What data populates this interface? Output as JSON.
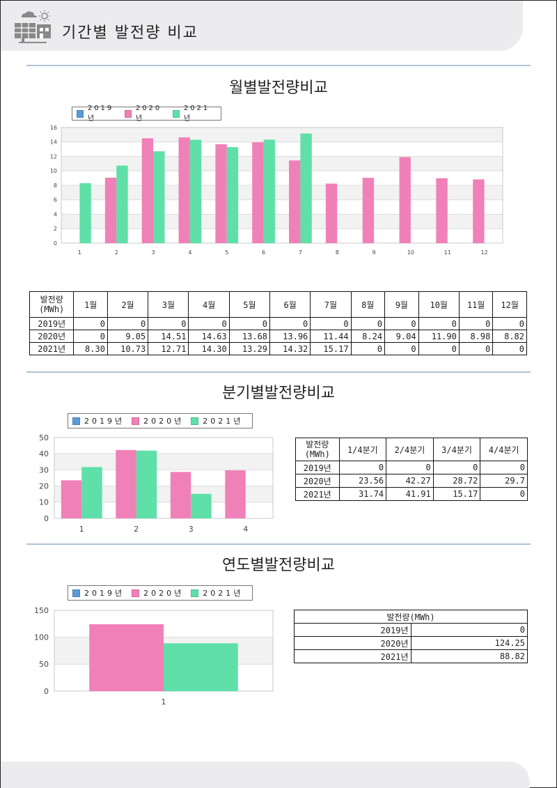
{
  "header": {
    "title": "기간별 발전량 비교"
  },
  "colors": {
    "s2019": "#5b9bd5",
    "s2020": "#f080b8",
    "s2021": "#5ee0a8",
    "header_bg": "#ececee",
    "rule": "#aec3da"
  },
  "sections": {
    "monthly": {
      "title": "월별발전량비교"
    },
    "quarterly": {
      "title": "분기별발전량비교"
    },
    "yearly": {
      "title": "연도별발전량비교"
    }
  },
  "legend": {
    "s2019": "2019년",
    "s2020": "2020년",
    "s2021": "2021년"
  },
  "chart_data": [
    {
      "type": "bar",
      "categories": [
        "1",
        "2",
        "3",
        "4",
        "5",
        "6",
        "7",
        "8",
        "9",
        "10",
        "11",
        "12"
      ],
      "ylim": [
        0,
        16
      ],
      "yticks": [
        0,
        2,
        4,
        6,
        8,
        10,
        12,
        14,
        16
      ],
      "grid": true,
      "legend_position": "top-left",
      "series": [
        {
          "name": "2019년",
          "values": [
            0,
            0,
            0,
            0,
            0,
            0,
            0,
            0,
            0,
            0,
            0,
            0
          ]
        },
        {
          "name": "2020년",
          "values": [
            0,
            9.05,
            14.51,
            14.63,
            13.68,
            13.96,
            11.44,
            8.24,
            9.04,
            11.9,
            8.98,
            8.82
          ]
        },
        {
          "name": "2021년",
          "values": [
            8.3,
            10.73,
            12.71,
            14.3,
            13.29,
            14.32,
            15.17,
            0,
            0,
            0,
            0,
            0
          ]
        }
      ]
    },
    {
      "type": "bar",
      "categories": [
        "1",
        "2",
        "3",
        "4"
      ],
      "ylim": [
        0,
        50
      ],
      "yticks": [
        0,
        10,
        20,
        30,
        40,
        50
      ],
      "grid": true,
      "legend_position": "top-left",
      "series": [
        {
          "name": "2019년",
          "values": [
            0,
            0,
            0,
            0
          ]
        },
        {
          "name": "2020년",
          "values": [
            23.56,
            42.27,
            28.72,
            29.7
          ]
        },
        {
          "name": "2021년",
          "values": [
            31.74,
            41.91,
            15.17,
            0
          ]
        }
      ]
    },
    {
      "type": "bar",
      "categories": [
        "1"
      ],
      "ylim": [
        0,
        150
      ],
      "yticks": [
        0,
        50,
        100,
        150
      ],
      "grid": true,
      "legend_position": "top-left",
      "series": [
        {
          "name": "2019년",
          "values": [
            0
          ]
        },
        {
          "name": "2020년",
          "values": [
            124.25
          ]
        },
        {
          "name": "2021년",
          "values": [
            88.82
          ]
        }
      ]
    }
  ],
  "tables": {
    "monthly": {
      "corner": [
        "발전량",
        "(MWh)"
      ],
      "headers": [
        "1월",
        "2월",
        "3월",
        "4월",
        "5월",
        "6월",
        "7월",
        "8월",
        "9월",
        "10월",
        "11월",
        "12월"
      ],
      "rows": [
        {
          "label": "2019년",
          "values": [
            "0",
            "0",
            "0",
            "0",
            "0",
            "0",
            "0",
            "0",
            "0",
            "0",
            "0",
            "0"
          ]
        },
        {
          "label": "2020년",
          "values": [
            "0",
            "9.05",
            "14.51",
            "14.63",
            "13.68",
            "13.96",
            "11.44",
            "8.24",
            "9.04",
            "11.90",
            "8.98",
            "8.82"
          ]
        },
        {
          "label": "2021년",
          "values": [
            "8.30",
            "10.73",
            "12.71",
            "14.30",
            "13.29",
            "14.32",
            "15.17",
            "0",
            "0",
            "0",
            "0",
            "0"
          ]
        }
      ]
    },
    "quarterly": {
      "corner": [
        "발전량",
        "(MWh)"
      ],
      "headers": [
        "1/4분기",
        "2/4분기",
        "3/4분기",
        "4/4분기"
      ],
      "rows": [
        {
          "label": "2019년",
          "values": [
            "0",
            "0",
            "0",
            "0"
          ]
        },
        {
          "label": "2020년",
          "values": [
            "23.56",
            "42.27",
            "28.72",
            "29.7"
          ]
        },
        {
          "label": "2021년",
          "values": [
            "31.74",
            "41.91",
            "15.17",
            "0"
          ]
        }
      ]
    },
    "yearly": {
      "header": "발전량(MWh)",
      "rows": [
        {
          "label": "2019년",
          "value": "0"
        },
        {
          "label": "2020년",
          "value": "124.25"
        },
        {
          "label": "2021년",
          "value": "88.82"
        }
      ]
    }
  }
}
